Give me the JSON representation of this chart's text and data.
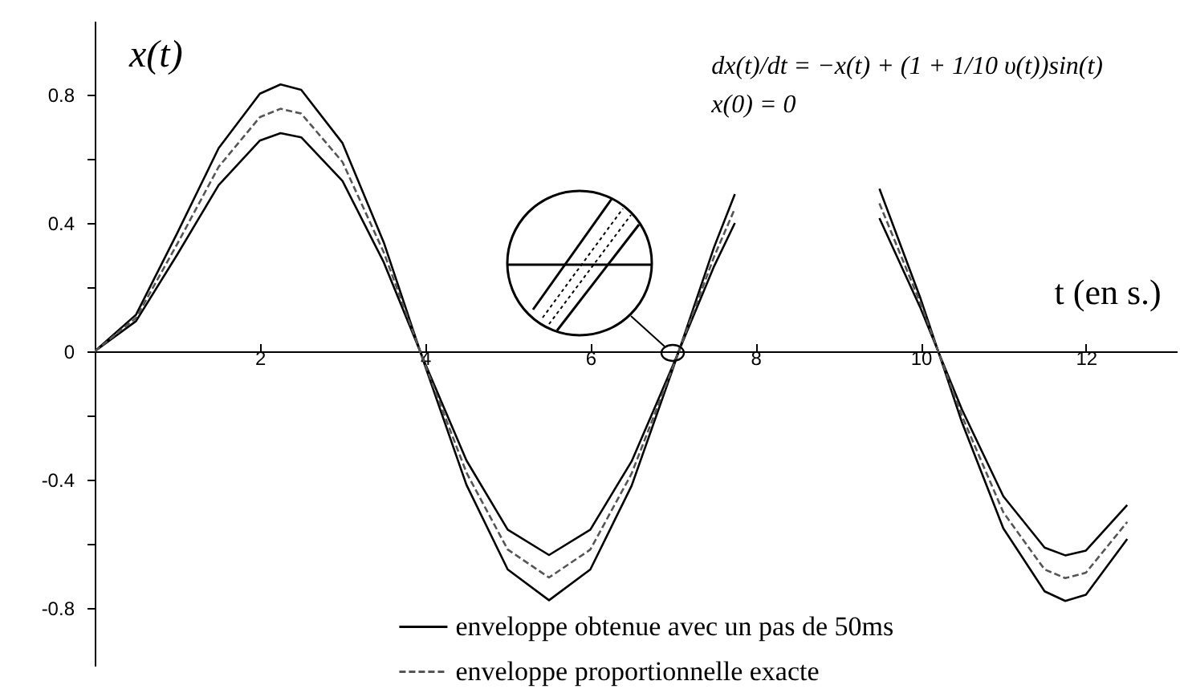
{
  "chart_data": {
    "type": "line",
    "xlabel": "t (en s.)",
    "ylabel": "x(t)",
    "x": [
      0,
      0.5,
      1,
      1.5,
      2,
      2.25,
      2.5,
      3,
      3.5,
      4,
      4.5,
      5,
      5.5,
      6,
      6.5,
      7,
      7.5,
      7.75,
      8,
      8.5,
      9,
      9.5,
      10,
      10.5,
      11,
      11.5,
      11.75,
      12,
      12.5
    ],
    "series": [
      {
        "name": "enveloppe obtenue avec un pas de 50ms",
        "color": "#000000",
        "line_style": "solid",
        "values": [
          0,
          0.114,
          0.369,
          0.633,
          0.803,
          0.832,
          0.815,
          0.649,
          0.339,
          -0.046,
          -0.416,
          -0.68,
          -0.776,
          -0.68,
          -0.419,
          -0.054,
          0.326,
          0.49,
          null,
          null,
          null,
          0.507,
          0.163,
          -0.222,
          -0.552,
          -0.748,
          -0.778,
          -0.759,
          -0.585
        ]
      },
      {
        "color": "#000000",
        "line_style": "solid",
        "values": [
          0,
          0.094,
          0.302,
          0.518,
          0.657,
          0.68,
          0.667,
          0.531,
          0.277,
          -0.038,
          -0.34,
          -0.556,
          -0.635,
          -0.556,
          -0.343,
          -0.044,
          0.266,
          0.4,
          null,
          null,
          null,
          0.415,
          0.133,
          -0.182,
          -0.452,
          -0.612,
          -0.636,
          -0.621,
          -0.479
        ]
      },
      {
        "name": "enveloppe proportionnelle exacte",
        "color": "#555555",
        "line_style": "dashed",
        "values": [
          0,
          0.104,
          0.335,
          0.575,
          0.73,
          0.756,
          0.741,
          0.59,
          0.308,
          -0.042,
          -0.378,
          -0.618,
          -0.705,
          -0.618,
          -0.381,
          -0.049,
          0.296,
          0.445,
          null,
          null,
          null,
          0.461,
          0.148,
          -0.202,
          -0.502,
          -0.68,
          -0.707,
          -0.69,
          -0.532
        ]
      }
    ],
    "xlim": [
      0,
      13.1
    ],
    "xticks": [
      2,
      4,
      6,
      8,
      10,
      12
    ],
    "ylim": [
      -0.98,
      1.03
    ],
    "yticks": [
      -0.8,
      {
        "value": -0.6,
        "label": null
      },
      -0.4,
      {
        "value": -0.2,
        "label": null
      },
      0,
      {
        "value": 0.2,
        "label": null
      },
      0.4,
      {
        "value": 0.6,
        "label": null
      },
      0.8
    ],
    "grid": false,
    "legend": "bottom",
    "annotations": [
      "dx(t)/dt = −x(t) + (1 + 1/10 υ(t))sin(t)",
      "x(0) = 0"
    ]
  }
}
